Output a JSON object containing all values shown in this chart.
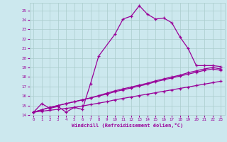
{
  "xlabel": "Windchill (Refroidissement éolien,°C)",
  "bg_color": "#cce8ee",
  "grid_color": "#aacccc",
  "line_color": "#990099",
  "xlim": [
    -0.5,
    23.5
  ],
  "ylim": [
    14,
    25.8
  ],
  "xticks": [
    0,
    1,
    2,
    3,
    4,
    5,
    6,
    7,
    8,
    9,
    10,
    11,
    12,
    13,
    14,
    15,
    16,
    17,
    18,
    19,
    20,
    21,
    22,
    23
  ],
  "yticks": [
    14,
    15,
    16,
    17,
    18,
    19,
    20,
    21,
    22,
    23,
    24,
    25
  ],
  "line1_x": [
    0,
    1,
    2,
    3,
    4,
    5,
    6,
    7,
    8,
    10,
    11,
    12,
    13,
    14,
    15,
    16,
    17,
    18,
    19,
    20,
    21,
    22,
    23
  ],
  "line1_y": [
    14.3,
    15.2,
    14.7,
    14.9,
    14.3,
    14.8,
    14.6,
    17.3,
    20.2,
    22.5,
    24.1,
    24.4,
    25.5,
    24.6,
    24.1,
    24.2,
    23.7,
    22.2,
    21.0,
    19.2,
    19.2,
    19.2,
    19.1
  ],
  "line2_x": [
    0,
    1,
    2,
    3,
    4,
    5,
    6,
    7,
    8,
    9,
    10,
    11,
    12,
    13,
    14,
    15,
    16,
    17,
    18,
    19,
    20,
    21,
    22,
    23
  ],
  "line2_y": [
    14.3,
    14.4,
    14.5,
    14.6,
    14.7,
    14.8,
    14.95,
    15.1,
    15.25,
    15.4,
    15.6,
    15.75,
    15.9,
    16.05,
    16.2,
    16.35,
    16.5,
    16.65,
    16.8,
    16.95,
    17.1,
    17.25,
    17.4,
    17.55
  ],
  "line3_x": [
    0,
    1,
    2,
    3,
    4,
    5,
    6,
    7,
    8,
    9,
    10,
    11,
    12,
    13,
    14,
    15,
    16,
    17,
    18,
    19,
    20,
    21,
    22,
    23
  ],
  "line3_y": [
    14.3,
    14.55,
    14.8,
    15.0,
    15.2,
    15.4,
    15.6,
    15.8,
    16.0,
    16.2,
    16.45,
    16.65,
    16.85,
    17.05,
    17.25,
    17.5,
    17.7,
    17.9,
    18.1,
    18.3,
    18.5,
    18.7,
    18.85,
    18.7
  ],
  "line4_x": [
    0,
    1,
    2,
    3,
    4,
    5,
    6,
    7,
    8,
    9,
    10,
    11,
    12,
    13,
    14,
    15,
    16,
    17,
    18,
    19,
    20,
    21,
    22,
    23
  ],
  "line4_y": [
    14.3,
    14.55,
    14.8,
    15.0,
    15.2,
    15.4,
    15.6,
    15.8,
    16.05,
    16.3,
    16.55,
    16.75,
    16.95,
    17.15,
    17.35,
    17.6,
    17.8,
    18.0,
    18.2,
    18.45,
    18.65,
    18.85,
    19.0,
    18.85
  ]
}
